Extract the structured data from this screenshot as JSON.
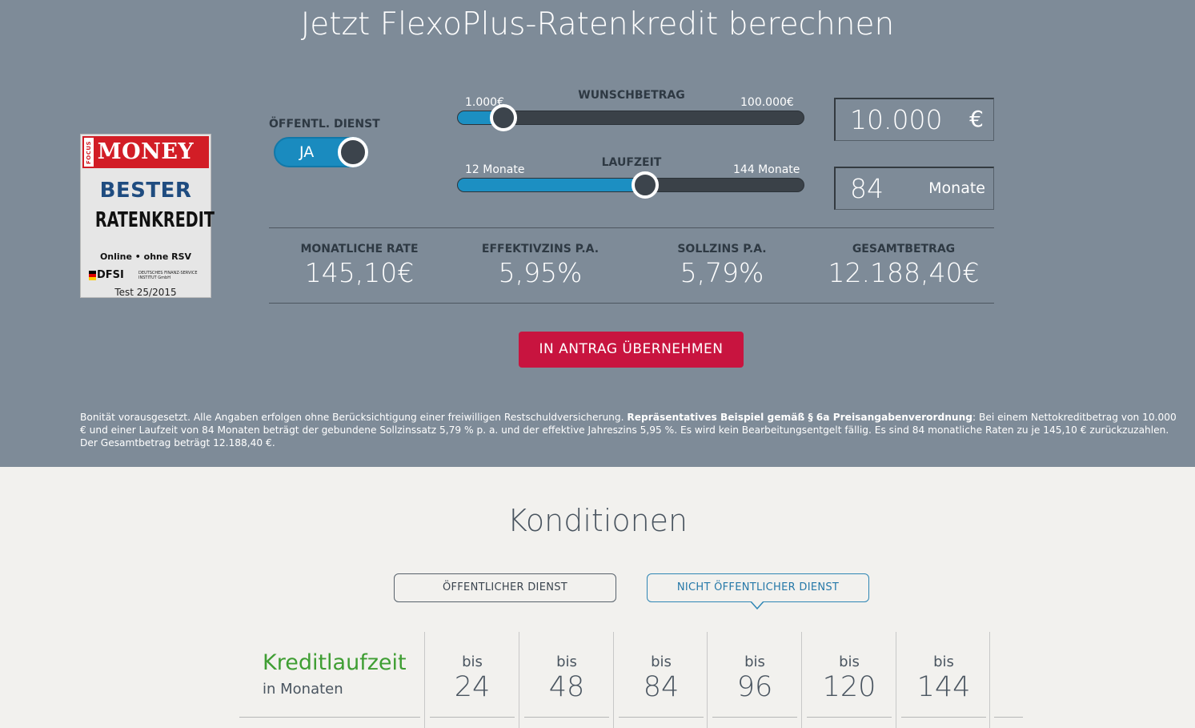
{
  "calculator": {
    "title": "Jetzt FlexoPlus-Ratenkredit berechnen",
    "badge": {
      "focus": "FOCUS",
      "money": "MONEY",
      "best": "BESTER",
      "ratenkredit": "RATENKREDIT",
      "online": "Online • ohne RSV",
      "dfsi": "DFSI",
      "dfsi_small": "DEUTSCHES FINANZ-SERVICE INSTITUT GmbH",
      "test": "Test 25/2015"
    },
    "oeffentl": {
      "label": "ÖFFENTL. DIENST",
      "value": "JA",
      "on": true
    },
    "wunschbetrag": {
      "label": "WUNSCHBETRAG",
      "min": "1.000€",
      "max": "100.000€",
      "value": 10000,
      "min_num": 1000,
      "max_num": 100000
    },
    "laufzeit": {
      "label": "LAUFZEIT",
      "min": "12 Monate",
      "max": "144 Monate",
      "value": 84,
      "min_num": 12,
      "max_num": 144
    },
    "amount_input": {
      "value": "10.000",
      "unit": "€"
    },
    "term_input": {
      "value": "84",
      "unit": "Monate"
    },
    "results": [
      {
        "label": "MONATLICHE RATE",
        "value": "145,10€"
      },
      {
        "label": "EFFEKTIVZINS P.A.",
        "value": "5,95%"
      },
      {
        "label": "SOLLZINS P.A.",
        "value": "5,79%"
      },
      {
        "label": "GESAMTBETRAG",
        "value": "12.188,40€"
      }
    ],
    "apply_button": "IN ANTRAG ÜBERNEHMEN",
    "disclaimer_1": "Bonität vorausgesetzt. Alle Angaben erfolgen ohne Berücksichtigung einer freiwilligen Restschuldversicherung. ",
    "disclaimer_bold": "Repräsentatives Beispiel gemäß § 6a Preisangabenverordnung",
    "disclaimer_2": ": Bei einem Nettokreditbetrag von 10.000 € und einer Laufzeit von 84 Monaten beträgt der gebundene Sollzinssatz 5,79 % p. a. und der effektive Jahreszins 5,95 %. Es wird kein Bearbeitungsentgelt fällig. Es sind 84 monatliche Raten zu je 145,10 € zurückzuzahlen. Der Gesamtbetrag beträgt 12.188,40 €."
  },
  "konditionen": {
    "title": "Konditionen",
    "tabs": [
      {
        "label": "ÖFFENTLICHER DIENST",
        "active": false
      },
      {
        "label": "NICHT ÖFFENTLICHER DIENST",
        "active": true
      }
    ],
    "row_label": "Kreditlaufzeit",
    "row_sub": "in Monaten",
    "columns": [
      {
        "prefix": "bis",
        "value": "24"
      },
      {
        "prefix": "bis",
        "value": "48"
      },
      {
        "prefix": "bis",
        "value": "84"
      },
      {
        "prefix": "bis",
        "value": "96"
      },
      {
        "prefix": "bis",
        "value": "120"
      },
      {
        "prefix": "bis",
        "value": "144"
      }
    ]
  },
  "colors": {
    "header_bg": "#7e8b98",
    "accent": "#1a8bbf",
    "cta": "#c8143f",
    "green": "#3f9e33"
  }
}
